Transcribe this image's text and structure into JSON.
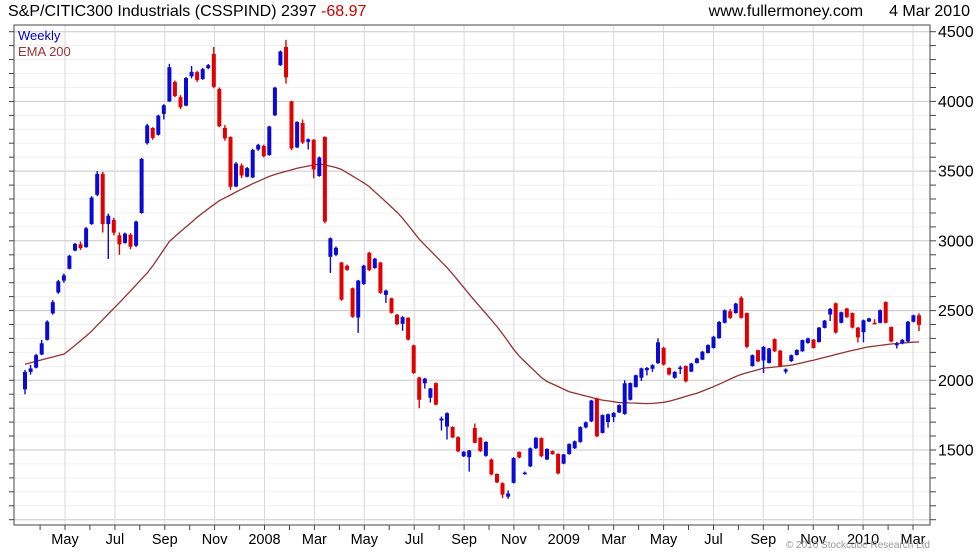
{
  "header": {
    "title": "S&P/CITIC300 Industrials (CSSPIND) 2397",
    "change": "-68.97",
    "website": "www.fullermoney.com",
    "date": "4 Mar 2010"
  },
  "legend": {
    "series1": "Weekly",
    "series2": "EMA 200"
  },
  "footer": {
    "copyright": "© 2010 Stockcube Research Ltd"
  },
  "chart_data": {
    "type": "candlestick",
    "title": "S&P/CITIC300 Industrials (CSSPIND)",
    "timeframe": "Weekly",
    "overlay": "EMA 200",
    "last_price": 2397,
    "change": -68.97,
    "ylim": [
      962,
      4548
    ],
    "y_ticks": [
      1500,
      2000,
      2500,
      3000,
      3500,
      4000,
      4500
    ],
    "y_minor_step": 100,
    "grid": true,
    "x_labels": [
      "May",
      "Jul",
      "Sep",
      "Nov",
      "2008",
      "Mar",
      "May",
      "Jul",
      "Sep",
      "Nov",
      "2009",
      "Mar",
      "May",
      "Jul",
      "Sep",
      "Nov",
      "2010",
      "Mar"
    ],
    "colors": {
      "up": "#0a0ad2",
      "down": "#e10000",
      "ema": "#913333",
      "grid_major": "#c8c8c8",
      "grid_minor": "#f0f0f0",
      "grid_vert": "#d8d8d8",
      "frame": "#444444"
    },
    "candles": [
      [
        1935,
        2075,
        1900,
        2060
      ],
      [
        2060,
        2110,
        2040,
        2085
      ],
      [
        2090,
        2190,
        2085,
        2180
      ],
      [
        2185,
        2290,
        2180,
        2265
      ],
      [
        2290,
        2430,
        2285,
        2420
      ],
      [
        2480,
        2575,
        2470,
        2560
      ],
      [
        2630,
        2720,
        2620,
        2710
      ],
      [
        2715,
        2765,
        2700,
        2752
      ],
      [
        2800,
        2900,
        2795,
        2893
      ],
      [
        2930,
        2985,
        2925,
        2978
      ],
      [
        2975,
        2995,
        2935,
        2948
      ],
      [
        2955,
        3100,
        2950,
        3090
      ],
      [
        3120,
        3320,
        3115,
        3310
      ],
      [
        3330,
        3500,
        3320,
        3480
      ],
      [
        3480,
        3495,
        3060,
        3120
      ],
      [
        3120,
        3195,
        2870,
        3180
      ],
      [
        3150,
        3165,
        3040,
        3058
      ],
      [
        3040,
        3060,
        2900,
        2975
      ],
      [
        2985,
        3060,
        2980,
        3052
      ],
      [
        3045,
        3055,
        2940,
        2958
      ],
      [
        2965,
        3145,
        2955,
        3138
      ],
      [
        3200,
        3595,
        3195,
        3588
      ],
      [
        3700,
        3840,
        3690,
        3828
      ],
      [
        3810,
        3815,
        3725,
        3738
      ],
      [
        3760,
        3905,
        3755,
        3898
      ],
      [
        3910,
        3980,
        3870,
        3972
      ],
      [
        4000,
        4270,
        3995,
        4245
      ],
      [
        4140,
        4150,
        4030,
        4038
      ],
      [
        4030,
        4045,
        3945,
        3958
      ],
      [
        3970,
        4175,
        3965,
        4168
      ],
      [
        4180,
        4255,
        4165,
        4212
      ],
      [
        4210,
        4220,
        4140,
        4152
      ],
      [
        4160,
        4240,
        4155,
        4232
      ],
      [
        4240,
        4268,
        4230,
        4260
      ],
      [
        4340,
        4390,
        4095,
        4105
      ],
      [
        4090,
        4100,
        3815,
        3822
      ],
      [
        3810,
        3830,
        3718,
        3735
      ],
      [
        3745,
        3750,
        3365,
        3388
      ],
      [
        3390,
        3565,
        3385,
        3555
      ],
      [
        3540,
        3555,
        3450,
        3468
      ],
      [
        3460,
        3530,
        3455,
        3522
      ],
      [
        3455,
        3660,
        3450,
        3652
      ],
      [
        3655,
        3695,
        3645,
        3688
      ],
      [
        3680,
        3690,
        3598,
        3608
      ],
      [
        3615,
        3825,
        3610,
        3820
      ],
      [
        3900,
        4105,
        3895,
        4098
      ],
      [
        4260,
        4365,
        4255,
        4358
      ],
      [
        4390,
        4442,
        4128,
        4172
      ],
      [
        4000,
        4005,
        3650,
        3662
      ],
      [
        3670,
        3858,
        3665,
        3852
      ],
      [
        3845,
        3870,
        3695,
        3705
      ],
      [
        3710,
        3735,
        3655,
        3728
      ],
      [
        3725,
        3730,
        3448,
        3512
      ],
      [
        3465,
        3605,
        3460,
        3598
      ],
      [
        3745,
        3750,
        3125,
        3138
      ],
      [
        2885,
        3025,
        2770,
        3018
      ],
      [
        2900,
        2960,
        2890,
        2950
      ],
      [
        2845,
        2850,
        2570,
        2578
      ],
      [
        2820,
        2830,
        2785,
        2792
      ],
      [
        2660,
        2665,
        2448,
        2455
      ],
      [
        2450,
        2720,
        2340,
        2715
      ],
      [
        2690,
        2828,
        2685,
        2822
      ],
      [
        2915,
        2920,
        2782,
        2790
      ],
      [
        2805,
        2878,
        2800,
        2872
      ],
      [
        2845,
        2850,
        2620,
        2628
      ],
      [
        2612,
        2650,
        2555,
        2643
      ],
      [
        2588,
        2592,
        2478,
        2483
      ],
      [
        2470,
        2475,
        2395,
        2402
      ],
      [
        2405,
        2460,
        2355,
        2452
      ],
      [
        2448,
        2452,
        2285,
        2292
      ],
      [
        2250,
        2255,
        2045,
        2052
      ],
      [
        2020,
        2025,
        1800,
        1860
      ],
      [
        1978,
        2018,
        1940,
        2012
      ],
      [
        1875,
        1945,
        1840,
        1942
      ],
      [
        1980,
        1985,
        1820,
        1826
      ],
      [
        1712,
        1740,
        1640,
        1726
      ],
      [
        1668,
        1770,
        1575,
        1764
      ],
      [
        1665,
        1670,
        1585,
        1590
      ],
      [
        1592,
        1598,
        1485,
        1490
      ],
      [
        1455,
        1492,
        1450,
        1488
      ],
      [
        1448,
        1500,
        1345,
        1496
      ],
      [
        1658,
        1690,
        1548,
        1552
      ],
      [
        1588,
        1592,
        1486,
        1492
      ],
      [
        1458,
        1562,
        1452,
        1558
      ],
      [
        1432,
        1438,
        1318,
        1325
      ],
      [
        1328,
        1332,
        1262,
        1268
      ],
      [
        1262,
        1268,
        1155,
        1180
      ],
      [
        1165,
        1210,
        1150,
        1188
      ],
      [
        1265,
        1448,
        1260,
        1442
      ],
      [
        1486,
        1490,
        1440,
        1446
      ],
      [
        1330,
        1345,
        1322,
        1338
      ],
      [
        1382,
        1518,
        1378,
        1512
      ],
      [
        1512,
        1592,
        1508,
        1588
      ],
      [
        1585,
        1590,
        1448,
        1455
      ],
      [
        1432,
        1512,
        1428,
        1508
      ],
      [
        1492,
        1496,
        1466,
        1470
      ],
      [
        1472,
        1476,
        1325,
        1332
      ],
      [
        1402,
        1472,
        1398,
        1468
      ],
      [
        1470,
        1548,
        1466,
        1542
      ],
      [
        1512,
        1568,
        1508,
        1562
      ],
      [
        1558,
        1670,
        1552,
        1664
      ],
      [
        1662,
        1705,
        1655,
        1698
      ],
      [
        1705,
        1860,
        1700,
        1855
      ],
      [
        1870,
        1875,
        1592,
        1598
      ],
      [
        1622,
        1755,
        1618,
        1750
      ],
      [
        1700,
        1762,
        1660,
        1756
      ],
      [
        1735,
        1772,
        1700,
        1766
      ],
      [
        1770,
        1828,
        1765,
        1822
      ],
      [
        1758,
        2000,
        1752,
        1978
      ],
      [
        1860,
        1985,
        1855,
        1980
      ],
      [
        1952,
        2040,
        1948,
        2036
      ],
      [
        2018,
        2090,
        1995,
        2085
      ],
      [
        2072,
        2095,
        2035,
        2088
      ],
      [
        2082,
        2115,
        2060,
        2108
      ],
      [
        2122,
        2300,
        2118,
        2272
      ],
      [
        2232,
        2240,
        2105,
        2112
      ],
      [
        2088,
        2092,
        2035,
        2042
      ],
      [
        2018,
        2065,
        2012,
        2060
      ],
      [
        2085,
        2105,
        2045,
        2092
      ],
      [
        2102,
        2106,
        1985,
        1992
      ],
      [
        2062,
        2125,
        2058,
        2120
      ],
      [
        2124,
        2162,
        2120,
        2156
      ],
      [
        2148,
        2210,
        2144,
        2205
      ],
      [
        2196,
        2258,
        2192,
        2252
      ],
      [
        2232,
        2318,
        2228,
        2312
      ],
      [
        2302,
        2425,
        2298,
        2418
      ],
      [
        2412,
        2508,
        2408,
        2502
      ],
      [
        2495,
        2512,
        2440,
        2448
      ],
      [
        2482,
        2556,
        2478,
        2550
      ],
      [
        2592,
        2602,
        2442,
        2448
      ],
      [
        2482,
        2486,
        2230,
        2240
      ],
      [
        2102,
        2185,
        2098,
        2180
      ],
      [
        2216,
        2220,
        2130,
        2136
      ],
      [
        2142,
        2245,
        2052,
        2240
      ],
      [
        2125,
        2232,
        2120,
        2228
      ],
      [
        2295,
        2300,
        2202,
        2208
      ],
      [
        2212,
        2218,
        2095,
        2102
      ],
      [
        2062,
        2085,
        2048,
        2078
      ],
      [
        2138,
        2185,
        2132,
        2180
      ],
      [
        2182,
        2222,
        2178,
        2218
      ],
      [
        2208,
        2292,
        2204,
        2288
      ],
      [
        2268,
        2305,
        2262,
        2300
      ],
      [
        2292,
        2296,
        2228,
        2232
      ],
      [
        2275,
        2382,
        2270,
        2378
      ],
      [
        2376,
        2432,
        2372,
        2428
      ],
      [
        2472,
        2518,
        2425,
        2512
      ],
      [
        2552,
        2558,
        2335,
        2342
      ],
      [
        2412,
        2492,
        2408,
        2488
      ],
      [
        2515,
        2520,
        2448,
        2452
      ],
      [
        2482,
        2486,
        2372,
        2378
      ],
      [
        2378,
        2382,
        2272,
        2308
      ],
      [
        2345,
        2435,
        2272,
        2430
      ],
      [
        2422,
        2448,
        2418,
        2444
      ],
      [
        2412,
        2438,
        2402,
        2408
      ],
      [
        2412,
        2508,
        2408,
        2502
      ],
      [
        2562,
        2566,
        2408,
        2412
      ],
      [
        2382,
        2386,
        2272,
        2278
      ],
      [
        2252,
        2275,
        2228,
        2262
      ],
      [
        2262,
        2295,
        2258,
        2290
      ],
      [
        2278,
        2425,
        2272,
        2420
      ],
      [
        2420,
        2470,
        2415,
        2466
      ],
      [
        2466,
        2480,
        2352,
        2397
      ]
    ],
    "ema": [
      2115,
      2125,
      2136,
      2146,
      2157,
      2167,
      2178,
      2188,
      2217,
      2250,
      2284,
      2317,
      2352,
      2394,
      2434,
      2475,
      2516,
      2556,
      2599,
      2641,
      2684,
      2727,
      2769,
      2820,
      2878,
      2937,
      2996,
      3031,
      3066,
      3100,
      3134,
      3169,
      3200,
      3230,
      3259,
      3288,
      3309,
      3329,
      3350,
      3370,
      3390,
      3410,
      3427,
      3445,
      3462,
      3476,
      3487,
      3498,
      3509,
      3520,
      3529,
      3537,
      3544,
      3552,
      3544,
      3535,
      3526,
      3512,
      3488,
      3464,
      3440,
      3416,
      3389,
      3352,
      3316,
      3279,
      3242,
      3206,
      3162,
      3113,
      3062,
      3012,
      2971,
      2930,
      2890,
      2849,
      2808,
      2763,
      2714,
      2666,
      2617,
      2570,
      2524,
      2478,
      2432,
      2385,
      2333,
      2278,
      2222,
      2173,
      2134,
      2096,
      2058,
      2020,
      1991,
      1973,
      1955,
      1937,
      1918,
      1908,
      1897,
      1887,
      1877,
      1866,
      1858,
      1852,
      1846,
      1840,
      1839,
      1837,
      1836,
      1834,
      1833,
      1834,
      1838,
      1842,
      1849,
      1861,
      1872,
      1884,
      1896,
      1907,
      1922,
      1938,
      1954,
      1972,
      1990,
      2009,
      2027,
      2042,
      2054,
      2065,
      2076,
      2087,
      2091,
      2095,
      2099,
      2103,
      2109,
      2117,
      2126,
      2135,
      2144,
      2154,
      2164,
      2174,
      2185,
      2195,
      2205,
      2214,
      2223,
      2232,
      2240,
      2245,
      2250,
      2255,
      2260,
      2264,
      2267,
      2270,
      2273,
      2275
    ]
  }
}
